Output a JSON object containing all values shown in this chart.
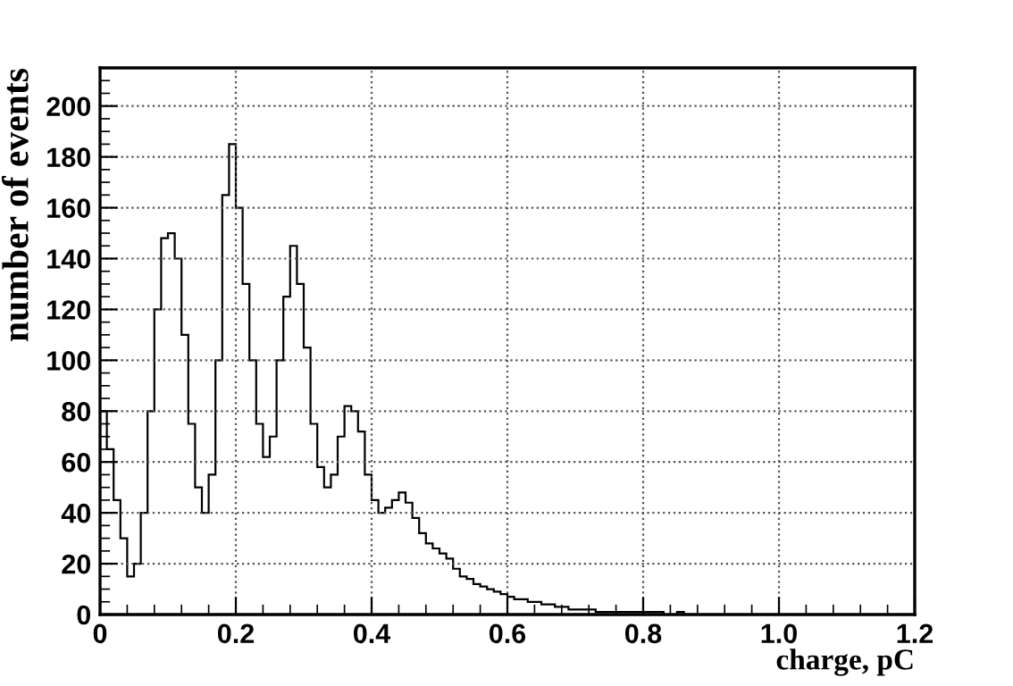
{
  "chart_data": {
    "type": "histogram",
    "xlabel": "charge, pC",
    "ylabel": "number of events",
    "color": "#000000",
    "bins": [
      0,
      0.01,
      0.02,
      0.03,
      0.04,
      0.05,
      0.06,
      0.07,
      0.08,
      0.09,
      0.1,
      0.11,
      0.12,
      0.13,
      0.14,
      0.15,
      0.16,
      0.17,
      0.18,
      0.19,
      0.2,
      0.21,
      0.22,
      0.23,
      0.24,
      0.25,
      0.26,
      0.27,
      0.28,
      0.29,
      0.3,
      0.31,
      0.32,
      0.33,
      0.34,
      0.35,
      0.36,
      0.37,
      0.38,
      0.39,
      0.4,
      0.41,
      0.42,
      0.43,
      0.44,
      0.45,
      0.46,
      0.47,
      0.48,
      0.49,
      0.5,
      0.51,
      0.52,
      0.53,
      0.54,
      0.55,
      0.56,
      0.57,
      0.58,
      0.59,
      0.6,
      0.61,
      0.62,
      0.63,
      0.64,
      0.65,
      0.66,
      0.67,
      0.68,
      0.69,
      0.7,
      0.71,
      0.72,
      0.73,
      0.74,
      0.75,
      0.76,
      0.77,
      0.78,
      0.79,
      0.8,
      0.81,
      0.82,
      0.83,
      0.84,
      0.85,
      0.86,
      0.87,
      0.88,
      0.89,
      0.9,
      0.91,
      0.92,
      0.93,
      0.94,
      0.95,
      0.96,
      0.97,
      0.98,
      0.99,
      1.0,
      1.01,
      1.02,
      1.03,
      1.04,
      1.05,
      1.06,
      1.07,
      1.08,
      1.09,
      1.1,
      1.11,
      1.12,
      1.13,
      1.14,
      1.15,
      1.16,
      1.17,
      1.18,
      1.19,
      1.2
    ],
    "values": [
      80,
      65,
      45,
      30,
      15,
      20,
      40,
      80,
      120,
      148,
      150,
      140,
      110,
      75,
      50,
      40,
      55,
      100,
      165,
      185,
      160,
      130,
      100,
      75,
      62,
      70,
      100,
      125,
      145,
      130,
      105,
      75,
      58,
      50,
      55,
      70,
      82,
      80,
      72,
      55,
      45,
      40,
      42,
      45,
      48,
      44,
      38,
      32,
      28,
      26,
      24,
      22,
      18,
      15,
      14,
      12,
      11,
      10,
      9,
      8,
      7,
      6,
      6,
      5,
      5,
      4,
      4,
      3,
      3,
      2,
      2,
      2,
      2,
      1,
      1,
      1,
      1,
      1,
      1,
      1,
      1,
      1,
      1,
      0,
      0,
      1,
      0,
      0,
      0,
      0,
      0,
      0,
      0,
      0,
      0,
      0,
      0,
      0,
      0,
      0,
      0,
      0,
      0,
      0,
      0,
      0,
      0,
      0,
      0,
      0,
      0,
      0,
      0,
      0,
      0,
      0,
      0,
      0,
      0,
      0
    ],
    "xlim": [
      0,
      1.2
    ],
    "ylim": [
      0,
      215
    ],
    "xticks": [
      0,
      0.2,
      0.4,
      0.6,
      0.8,
      {
        "value": 1.0,
        "label": "1.0"
      },
      1.2
    ],
    "yticks": [
      0,
      20,
      40,
      60,
      80,
      100,
      120,
      140,
      160,
      180,
      200
    ],
    "grid": true
  }
}
